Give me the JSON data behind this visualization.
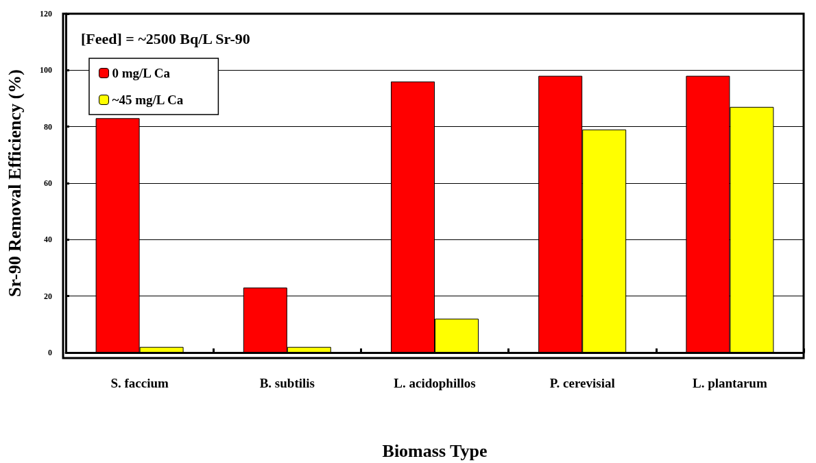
{
  "chart_data": {
    "type": "bar",
    "xlabel": "Biomass Type",
    "ylabel": "Sr-90 Removal Efficiency (%)",
    "categories": [
      "S. faccium",
      "B. subtilis",
      "L. acidophillos",
      "P. cerevisial",
      "L. plantarum"
    ],
    "series": [
      {
        "name": "0 mg/L Ca",
        "color": "#ff0000",
        "values": [
          83,
          23,
          96,
          98,
          98
        ]
      },
      {
        "name": "~45 mg/L Ca",
        "color": "#ffff00",
        "values": [
          2,
          2,
          12,
          79,
          87
        ]
      }
    ],
    "ylim": [
      0,
      120
    ],
    "yticks": [
      0,
      20,
      40,
      60,
      80,
      100,
      120
    ],
    "grid": "y",
    "legend": "top left",
    "annotations": [
      "[Feed] = ~2500 Bq/L Sr-90"
    ]
  }
}
